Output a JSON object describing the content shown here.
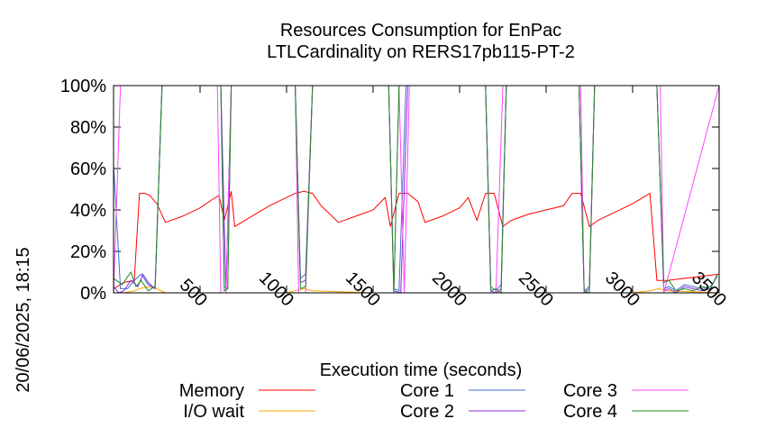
{
  "timestamp": "20/06/2025, 18:15",
  "chart_data": {
    "type": "line",
    "title": "Resources Consumption for EnPac",
    "subtitle": "LTLCardinality on RERS17pb115-PT-2",
    "xlabel": "Execution time (seconds)",
    "xlim": [
      0,
      3500
    ],
    "ylim": [
      0,
      100
    ],
    "xticks": [
      500,
      1000,
      1500,
      2000,
      2500,
      3000,
      3500
    ],
    "xtick_labels": [
      "500",
      "1000",
      "1500",
      "2000",
      "2500",
      "3000",
      "3500"
    ],
    "yticks": [
      0,
      20,
      40,
      60,
      80,
      100
    ],
    "ytick_labels": [
      "0%",
      "20%",
      "40%",
      "60%",
      "80%",
      "100%"
    ],
    "legend_position": "bottom",
    "series": [
      {
        "name": "Memory",
        "color": "#ff0000",
        "x": [
          0,
          60,
          120,
          150,
          180,
          210,
          250,
          300,
          400,
          500,
          570,
          610,
          640,
          680,
          700,
          800,
          900,
          1000,
          1050,
          1100,
          1150,
          1200,
          1300,
          1400,
          1500,
          1570,
          1600,
          1650,
          1700,
          1760,
          1800,
          1900,
          2000,
          2050,
          2100,
          2150,
          2200,
          2250,
          2300,
          2400,
          2500,
          2600,
          2650,
          2700,
          2750,
          2800,
          2900,
          3000,
          3100,
          3140,
          3200,
          3300,
          3400,
          3500
        ],
        "y": [
          2,
          5,
          6,
          48,
          48,
          47,
          43,
          34,
          37,
          41,
          45,
          47,
          35,
          49,
          32,
          37,
          42,
          46,
          48,
          49,
          48,
          42,
          34,
          37,
          40,
          46,
          32,
          48,
          48,
          44,
          34,
          37,
          41,
          46,
          35,
          48,
          48,
          32,
          35,
          38,
          40,
          42,
          48,
          48,
          32,
          35,
          39,
          43,
          48,
          6,
          6,
          7,
          8,
          9
        ]
      },
      {
        "name": "I/O wait",
        "color": "#ffa500",
        "x": [
          0,
          60,
          120,
          150,
          200,
          250,
          300,
          500,
          1000,
          1050,
          1100,
          1150,
          1500,
          2000,
          2500,
          3000,
          3100,
          3150,
          3200,
          3500
        ],
        "y": [
          0,
          0,
          1,
          2,
          3,
          2,
          0,
          0,
          0,
          1,
          2,
          1,
          0,
          0,
          0,
          0,
          1,
          2,
          1,
          0
        ]
      },
      {
        "name": "Core 1",
        "color": "#3f6fcf",
        "x": [
          0,
          40,
          80,
          120,
          160,
          200,
          240,
          280,
          620,
          640,
          660,
          680,
          1050,
          1080,
          1110,
          1150,
          1590,
          1620,
          1650,
          1690,
          1720,
          1760,
          2150,
          2180,
          2210,
          2240,
          2270,
          2690,
          2720,
          2750,
          2780,
          3140,
          3180,
          3210,
          3250,
          3300,
          3350,
          3400,
          3450,
          3490
        ],
        "y": [
          62,
          2,
          2,
          6,
          9,
          4,
          2,
          100,
          100,
          3,
          2,
          100,
          100,
          7,
          9,
          100,
          100,
          2,
          1,
          100,
          100,
          100,
          100,
          3,
          1,
          4,
          100,
          100,
          1,
          3,
          100,
          100,
          2,
          3,
          1,
          4,
          3,
          2,
          3,
          8
        ]
      },
      {
        "name": "Core 2",
        "color": "#8a2be2",
        "x": [
          0,
          30,
          60,
          100,
          140,
          170,
          200,
          240,
          280,
          620,
          650,
          680,
          1050,
          1080,
          1110,
          1150,
          1590,
          1620,
          1660,
          1700,
          1720,
          1760,
          2150,
          2180,
          2210,
          2240,
          2270,
          2690,
          2720,
          2750,
          2780,
          3140,
          3180,
          3210,
          3250,
          3300,
          3350,
          3400,
          3450,
          3490
        ],
        "y": [
          3,
          0,
          1,
          6,
          3,
          9,
          5,
          2,
          100,
          100,
          1,
          100,
          100,
          5,
          6,
          100,
          100,
          1,
          0,
          100,
          100,
          100,
          100,
          1,
          0,
          2,
          100,
          100,
          0,
          2,
          100,
          100,
          1,
          2,
          0,
          3,
          2,
          1,
          2,
          9
        ]
      },
      {
        "name": "Core 3",
        "color": "#ff44ff",
        "x": [
          0,
          40,
          80,
          600,
          620,
          650,
          680,
          1050,
          1070,
          1110,
          1150,
          1590,
          1620,
          1650,
          1680,
          1710,
          1750,
          2150,
          2180,
          2210,
          2250,
          2700,
          2720,
          2750,
          2780,
          3160,
          3180,
          3500
        ],
        "y": [
          0,
          100,
          100,
          100,
          0,
          0,
          100,
          100,
          0,
          0,
          100,
          100,
          0,
          100,
          0,
          100,
          100,
          100,
          0,
          0,
          100,
          100,
          0,
          0,
          100,
          100,
          0,
          100
        ]
      },
      {
        "name": "Core 4",
        "color": "#228b22",
        "x": [
          0,
          50,
          100,
          130,
          160,
          200,
          240,
          280,
          620,
          640,
          660,
          680,
          1050,
          1080,
          1110,
          1150,
          1590,
          1620,
          1650,
          1690,
          1720,
          1760,
          2150,
          2180,
          2210,
          2240,
          2270,
          2690,
          2720,
          2750,
          2780,
          3140,
          3180,
          3210,
          3250,
          3300,
          3350,
          3400,
          3450,
          3490
        ],
        "y": [
          7,
          4,
          10,
          3,
          6,
          1,
          3,
          100,
          100,
          1,
          2,
          100,
          100,
          2,
          3,
          100,
          100,
          0,
          100,
          100,
          100,
          100,
          100,
          1,
          2,
          0,
          100,
          100,
          1,
          0,
          100,
          100,
          5,
          6,
          1,
          2,
          1,
          3,
          2,
          9
        ]
      }
    ]
  }
}
